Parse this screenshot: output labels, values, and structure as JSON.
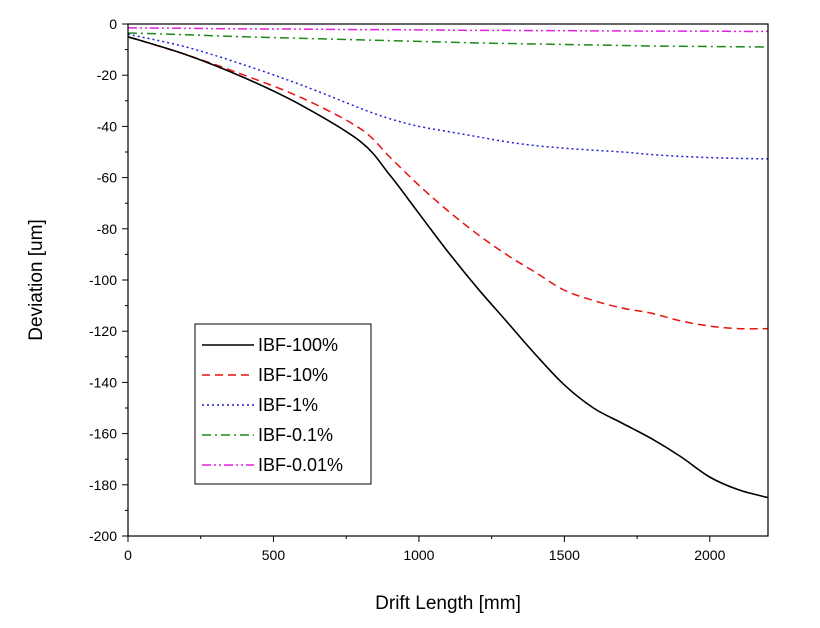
{
  "chart_data": {
    "type": "line",
    "title": "",
    "xlabel": "Drift Length [mm]",
    "ylabel": "Deviation [um]",
    "xlim": [
      0,
      2200
    ],
    "ylim": [
      -200,
      0
    ],
    "xticks": [
      0,
      500,
      1000,
      1500,
      2000
    ],
    "yticks": [
      0,
      -20,
      -40,
      -60,
      -80,
      -100,
      -120,
      -140,
      -160,
      -180,
      -200
    ],
    "xtick_labels": [
      "0",
      "500",
      "1000",
      "1500",
      "2000"
    ],
    "ytick_labels": [
      "0",
      "-20",
      "-40",
      "-60",
      "-80",
      "-100",
      "-120",
      "-140",
      "-160",
      "-180",
      "-200"
    ],
    "grid": false,
    "legend_position": "bottom-left",
    "x": [
      0,
      200,
      400,
      600,
      800,
      900,
      1000,
      1100,
      1200,
      1300,
      1400,
      1500,
      1600,
      1700,
      1800,
      1900,
      2000,
      2100,
      2200
    ],
    "series": [
      {
        "name": "IBF-100%",
        "color": "#000000",
        "dash": "solid",
        "values": [
          -5,
          -12,
          -21,
          -32,
          -46,
          -59,
          -74,
          -89,
          -103,
          -116,
          -129,
          -141,
          -150,
          -156,
          -162,
          -169,
          -177,
          -182,
          -185
        ]
      },
      {
        "name": "IBF-10%",
        "color": "#e8120c",
        "dash": "dash",
        "values": [
          -5,
          -12,
          -20,
          -29,
          -41,
          -52,
          -63,
          -73,
          -82,
          -90,
          -97,
          -104,
          -108,
          -111,
          -113,
          -116,
          -118,
          -119,
          -119
        ]
      },
      {
        "name": "IBF-1%",
        "color": "#1f1fd8",
        "dash": "dot",
        "values": [
          -4,
          -9,
          -16,
          -24,
          -33,
          -37,
          -40,
          -42,
          -44,
          -46,
          -47.5,
          -48.5,
          -49.3,
          -50,
          -51,
          -51.7,
          -52.2,
          -52.5,
          -52.7
        ]
      },
      {
        "name": "IBF-0.1%",
        "color": "#1a8a1a",
        "dash": "dashdot",
        "values": [
          -3.5,
          -4.2,
          -5,
          -5.6,
          -6.2,
          -6.5,
          -6.8,
          -7.1,
          -7.4,
          -7.6,
          -7.8,
          -8,
          -8.2,
          -8.4,
          -8.6,
          -8.7,
          -8.8,
          -8.9,
          -9
        ]
      },
      {
        "name": "IBF-0.01%",
        "color": "#e020e0",
        "dash": "dashdotdot",
        "values": [
          -1.5,
          -1.7,
          -1.9,
          -2,
          -2.2,
          -2.2,
          -2.3,
          -2.4,
          -2.5,
          -2.5,
          -2.6,
          -2.6,
          -2.7,
          -2.7,
          -2.8,
          -2.8,
          -2.8,
          -2.9,
          -2.9
        ]
      }
    ]
  }
}
